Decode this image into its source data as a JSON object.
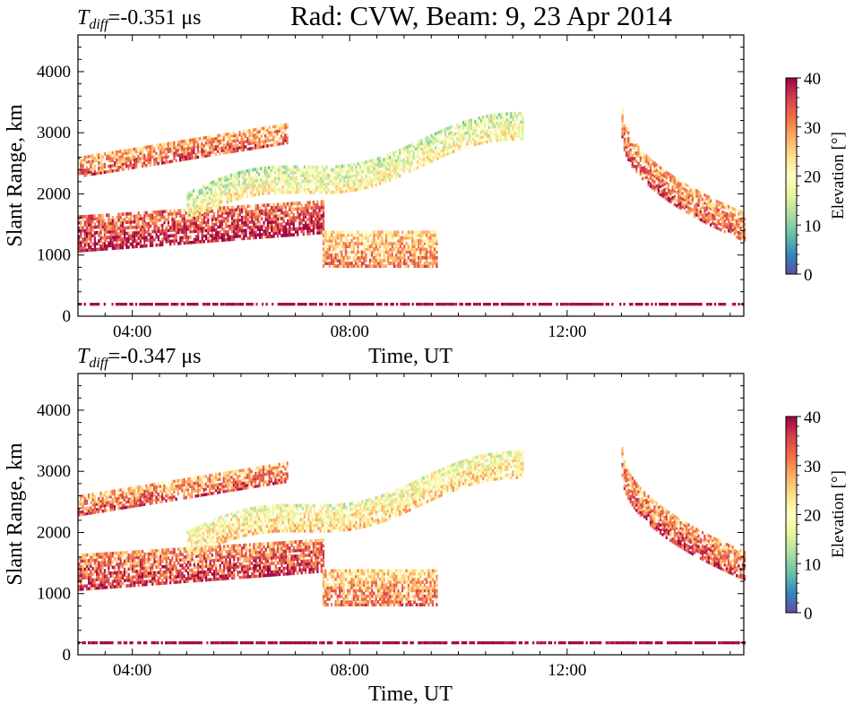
{
  "title": "Rad: CVW, Beam: 9, 23 Apr 2014",
  "panels": [
    {
      "tdiff_label": "=-0.351 μs",
      "ylabel": "Slant Range, km",
      "xlabel": "Time, UT",
      "colorbar_label": "Elevation [°]"
    },
    {
      "tdiff_label": "=-0.347 μs",
      "ylabel": "Slant Range, km",
      "xlabel": "Time, UT",
      "colorbar_label": "Elevation [°]"
    }
  ],
  "tdiff_symbol": "T",
  "tdiff_sub": "diff",
  "chart_data": [
    {
      "type": "heatmap",
      "title": "Rad: CVW, Beam: 9, 23 Apr 2014",
      "xlabel": "Time, UT",
      "ylabel": "Slant Range, km",
      "xlim_hours": [
        3.0,
        15.25
      ],
      "ylim": [
        0,
        4600
      ],
      "x_ticks": [
        "04:00",
        "08:00",
        "12:00"
      ],
      "y_ticks": [
        0,
        1000,
        2000,
        3000,
        4000
      ],
      "colorbar": {
        "label": "Elevation [°]",
        "range": [
          0,
          40
        ],
        "ticks": [
          0,
          10,
          20,
          30,
          40
        ],
        "colormap": "Spectral_r"
      },
      "features": [
        {
          "name": "near-range band",
          "time": [
            "03:00",
            "07:30"
          ],
          "range_km": [
            1050,
            1800
          ],
          "elevation_deg": 35
        },
        {
          "name": "main rising band",
          "time": [
            "05:00",
            "11:10"
          ],
          "range_km": [
            1600,
            3250
          ],
          "elevation_deg": 18
        },
        {
          "name": "upper band",
          "time": [
            "03:00",
            "06:50"
          ],
          "range_km": [
            2300,
            3100
          ],
          "elevation_deg": 30
        },
        {
          "name": "far-range patch",
          "time": [
            "07:30",
            "09:35"
          ],
          "range_km": [
            800,
            1400
          ],
          "elevation_deg": 27
        },
        {
          "name": "late descending band",
          "time": [
            "13:00",
            "15:15"
          ],
          "range_km": [
            1200,
            3200
          ],
          "elevation_deg": 30
        },
        {
          "name": "ground line",
          "time": [
            "03:00",
            "15:15"
          ],
          "range_km": [
            180,
            220
          ],
          "elevation_deg": 40
        }
      ]
    },
    {
      "type": "heatmap",
      "xlabel": "Time, UT",
      "ylabel": "Slant Range, km",
      "xlim_hours": [
        3.0,
        15.25
      ],
      "ylim": [
        0,
        4600
      ],
      "x_ticks": [
        "04:00",
        "08:00",
        "12:00"
      ],
      "y_ticks": [
        0,
        1000,
        2000,
        3000,
        4000
      ],
      "colorbar": {
        "label": "Elevation [°]",
        "range": [
          0,
          40
        ],
        "ticks": [
          0,
          10,
          20,
          30,
          40
        ],
        "colormap": "Spectral_r"
      },
      "features": [
        {
          "name": "near-range band",
          "time": [
            "03:00",
            "07:30"
          ],
          "range_km": [
            1050,
            1800
          ],
          "elevation_deg": 33
        },
        {
          "name": "main rising band",
          "time": [
            "05:00",
            "11:10"
          ],
          "range_km": [
            1600,
            3250
          ],
          "elevation_deg": 21
        },
        {
          "name": "upper band",
          "time": [
            "03:00",
            "06:50"
          ],
          "range_km": [
            2300,
            3100
          ],
          "elevation_deg": 30
        },
        {
          "name": "far-range patch",
          "time": [
            "07:30",
            "09:35"
          ],
          "range_km": [
            800,
            1400
          ],
          "elevation_deg": 28
        },
        {
          "name": "late descending band",
          "time": [
            "13:00",
            "15:15"
          ],
          "range_km": [
            1200,
            3200
          ],
          "elevation_deg": 31
        },
        {
          "name": "ground line",
          "time": [
            "03:00",
            "15:15"
          ],
          "range_km": [
            180,
            220
          ],
          "elevation_deg": 40
        }
      ]
    }
  ]
}
